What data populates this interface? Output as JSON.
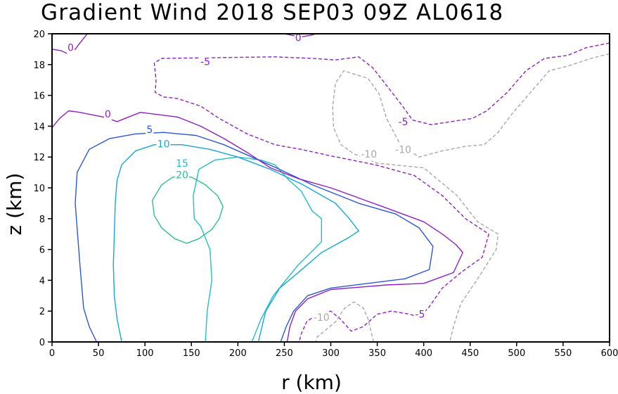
{
  "chart_data": {
    "type": "contour",
    "title": "Gradient Wind 2018 SEP03 09Z  AL0618",
    "xlabel": "r (km)",
    "ylabel": "z (km)",
    "xlim": [
      0,
      600
    ],
    "ylim": [
      0,
      20
    ],
    "xticks": [
      0,
      50,
      100,
      150,
      200,
      250,
      300,
      350,
      400,
      450,
      500,
      550,
      600
    ],
    "yticks": [
      0,
      2,
      4,
      6,
      8,
      10,
      12,
      14,
      16,
      18,
      20
    ],
    "xtick_labels": [
      "0",
      "50",
      "100",
      "150",
      "200",
      "250",
      "300",
      "350",
      "400",
      "450",
      "500",
      "550",
      "600"
    ],
    "ytick_labels": [
      "0",
      "2",
      "4",
      "6",
      "8",
      "10",
      "12",
      "14",
      "16",
      "18",
      "20"
    ],
    "levels": [
      {
        "value": 20,
        "label": "20",
        "color": "#2fbf95",
        "dashed": false,
        "lines": [
          [
            [
              108,
              9.2
            ],
            [
              118,
              10.2
            ],
            [
              130,
              10.7
            ],
            [
              150,
              10.7
            ],
            [
              165,
              10.2
            ],
            [
              178,
              9.5
            ],
            [
              184,
              8.8
            ],
            [
              180,
              8.0
            ],
            [
              172,
              7.3
            ],
            [
              158,
              6.7
            ],
            [
              145,
              6.4
            ],
            [
              132,
              6.7
            ],
            [
              118,
              7.4
            ],
            [
              110,
              8.2
            ],
            [
              108,
              9.2
            ]
          ]
        ],
        "labels": [
          {
            "x": 140,
            "y": 10.85
          }
        ]
      },
      {
        "value": 15,
        "label": "15",
        "color": "#20c0c8",
        "dashed": false,
        "lines": [
          [
            [
              165,
              0
            ],
            [
              167,
              2
            ],
            [
              172,
              4
            ],
            [
              170,
              6
            ],
            [
              160,
              7.5
            ],
            [
              153,
              8
            ],
            [
              152,
              9.5
            ],
            [
              158,
              11.2
            ],
            [
              175,
              11.8
            ],
            [
              200,
              12.0
            ],
            [
              225,
              11.8
            ],
            [
              240,
              11.5
            ],
            [
              255,
              10.5
            ],
            [
              268,
              9.8
            ],
            [
              280,
              8.5
            ],
            [
              290,
              8.0
            ],
            [
              290,
              6.5
            ],
            [
              265,
              5.0
            ],
            [
              238,
              3.0
            ],
            [
              225,
              1.5
            ],
            [
              215,
              0
            ]
          ]
        ],
        "labels": [
          {
            "x": 140,
            "y": 11.6
          }
        ]
      },
      {
        "value": 10,
        "label": "10",
        "color": "#14a8d8",
        "dashed": false,
        "lines": [
          [
            [
              75,
              0
            ],
            [
              70,
              1.5
            ],
            [
              67,
              3
            ],
            [
              66,
              5
            ],
            [
              67,
              7
            ],
            [
              68,
              9
            ],
            [
              70,
              10.5
            ],
            [
              75,
              11.5
            ],
            [
              90,
              12.4
            ],
            [
              110,
              12.8
            ],
            [
              140,
              12.8
            ],
            [
              170,
              12.5
            ],
            [
              200,
              12.0
            ],
            [
              235,
              11.2
            ],
            [
              270,
              10.2
            ],
            [
              305,
              9.0
            ],
            [
              320,
              8.0
            ],
            [
              330,
              7.2
            ],
            [
              320,
              6.8
            ],
            [
              290,
              5.8
            ],
            [
              265,
              4.5
            ],
            [
              245,
              3.5
            ],
            [
              230,
              2.0
            ],
            [
              222,
              0
            ]
          ]
        ],
        "labels": [
          {
            "x": 120,
            "y": 12.85
          }
        ]
      },
      {
        "value": 5,
        "label": "5",
        "color": "#2c57d8",
        "dashed": false,
        "lines": [
          [
            [
              48,
              0
            ],
            [
              40,
              1
            ],
            [
              34,
              2.2
            ],
            [
              30,
              5
            ],
            [
              25,
              9
            ],
            [
              27,
              11
            ],
            [
              40,
              12.5
            ],
            [
              62,
              13.2
            ],
            [
              90,
              13.5
            ],
            [
              120,
              13.6
            ],
            [
              155,
              13.4
            ],
            [
              185,
              12.8
            ],
            [
              215,
              12.0
            ],
            [
              245,
              11.2
            ],
            [
              280,
              10.2
            ],
            [
              330,
              9.0
            ],
            [
              370,
              8.3
            ],
            [
              395,
              7.4
            ],
            [
              410,
              6.2
            ],
            [
              406,
              4.7
            ],
            [
              380,
              4.1
            ],
            [
              300,
              3.5
            ],
            [
              275,
              3.0
            ],
            [
              260,
              2.0
            ],
            [
              252,
              1.0
            ],
            [
              246,
              0
            ]
          ]
        ],
        "labels": [
          {
            "x": 105,
            "y": 13.8
          }
        ]
      },
      {
        "value": 0,
        "label": "0",
        "color": "#9020c8",
        "dashed": false,
        "lines": [
          [
            [
              0,
              13.9
            ],
            [
              8,
              14.5
            ],
            [
              18,
              15.0
            ],
            [
              30,
              14.9
            ],
            [
              55,
              14.6
            ],
            [
              70,
              14.3
            ],
            [
              95,
              14.9
            ],
            [
              135,
              14.6
            ],
            [
              160,
              14.0
            ],
            [
              185,
              13.2
            ],
            [
              210,
              12.3
            ],
            [
              235,
              11.3
            ],
            [
              265,
              10.6
            ],
            [
              300,
              10.0
            ],
            [
              355,
              8.8
            ],
            [
              400,
              7.8
            ],
            [
              420,
              7.0
            ],
            [
              435,
              6.3
            ],
            [
              442,
              5.8
            ],
            [
              432,
              4.5
            ],
            [
              400,
              3.8
            ],
            [
              360,
              3.7
            ],
            [
              300,
              3.4
            ],
            [
              275,
              2.8
            ],
            [
              262,
              2.0
            ],
            [
              256,
              1.0
            ],
            [
              253,
              0
            ]
          ],
          [
            [
              0,
              19.0
            ],
            [
              10,
              18.9
            ],
            [
              17,
              18.7
            ],
            [
              25,
              19.0
            ],
            [
              30,
              19.4
            ],
            [
              34,
              19.7
            ],
            [
              38,
              20
            ]
          ],
          [
            [
              250,
              20
            ],
            [
              258,
              19.9
            ],
            [
              268,
              19.8
            ],
            [
              278,
              19.9
            ],
            [
              285,
              20
            ]
          ]
        ],
        "labels": [
          {
            "x": 60,
            "y": 14.8
          },
          {
            "x": 20,
            "y": 19.1
          },
          {
            "x": 265,
            "y": 19.75
          }
        ]
      },
      {
        "value": -5,
        "label": "-5",
        "color": "#9020c8",
        "dashed": true,
        "lines": [
          [
            [
              600,
              19.4
            ],
            [
              575,
              19.1
            ],
            [
              555,
              18.6
            ],
            [
              530,
              18.4
            ],
            [
              510,
              17.6
            ],
            [
              490,
              16.2
            ],
            [
              468,
              15.0
            ],
            [
              452,
              14.5
            ],
            [
              430,
              14.3
            ],
            [
              408,
              14.1
            ],
            [
              388,
              14.4
            ],
            [
              376,
              15.4
            ],
            [
              362,
              16.5
            ],
            [
              345,
              17.8
            ],
            [
              330,
              18.5
            ],
            [
              305,
              18.3
            ],
            [
              280,
              18.4
            ],
            [
              240,
              18.5
            ],
            [
              118,
              18.4
            ],
            [
              110,
              18.1
            ],
            [
              112,
              17.0
            ],
            [
              111,
              16.2
            ],
            [
              120,
              15.9
            ],
            [
              135,
              15.8
            ],
            [
              160,
              15.3
            ],
            [
              180,
              14.5
            ],
            [
              210,
              13.5
            ],
            [
              240,
              12.8
            ],
            [
              268,
              12.5
            ],
            [
              298,
              12.1
            ],
            [
              348,
              11.5
            ],
            [
              390,
              10.8
            ],
            [
              420,
              9.5
            ],
            [
              445,
              8.0
            ],
            [
              470,
              7.0
            ],
            [
              463,
              5.5
            ],
            [
              440,
              4.5
            ],
            [
              420,
              3.5
            ],
            [
              405,
              2.2
            ],
            [
              395,
              1.6
            ],
            [
              385,
              1.8
            ],
            [
              365,
              2.0
            ],
            [
              350,
              1.8
            ],
            [
              335,
              1.0
            ],
            [
              322,
              0.7
            ],
            [
              310,
              1.5
            ],
            [
              300,
              2.0
            ],
            [
              285,
              1.8
            ],
            [
              274,
              1.3
            ],
            [
              268,
              0.5
            ],
            [
              266,
              0
            ]
          ]
        ],
        "labels": [
          {
            "x": 165,
            "y": 18.2
          },
          {
            "x": 378,
            "y": 14.3
          },
          {
            "x": 396,
            "y": 1.8
          }
        ]
      },
      {
        "value": -10,
        "label": "-10",
        "color": "#a8a8a8",
        "dashed": true,
        "lines": [
          [
            [
              600,
              18.7
            ],
            [
              580,
              18.4
            ],
            [
              555,
              17.9
            ],
            [
              535,
              17.6
            ],
            [
              515,
              16.2
            ],
            [
              495,
              14.8
            ],
            [
              480,
              13.6
            ],
            [
              465,
              12.8
            ],
            [
              445,
              12.7
            ],
            [
              420,
              12.4
            ],
            [
              395,
              12.0
            ],
            [
              375,
              12.8
            ],
            [
              360,
              14.5
            ],
            [
              352,
              16.1
            ],
            [
              340,
              17.1
            ],
            [
              314,
              17.6
            ],
            [
              305,
              16.8
            ],
            [
              302,
              15.2
            ],
            [
              303,
              13.9
            ],
            [
              311,
              12.8
            ],
            [
              325,
              12.2
            ],
            [
              334,
              12.0
            ],
            [
              350,
              11.6
            ],
            [
              400,
              11.3
            ],
            [
              436,
              9.5
            ],
            [
              458,
              7.8
            ],
            [
              480,
              7.0
            ],
            [
              478,
              6.0
            ],
            [
              457,
              4.0
            ],
            [
              440,
              2.5
            ],
            [
              432,
              1.0
            ],
            [
              428,
              0
            ]
          ],
          [
            [
              346,
              0
            ],
            [
              340,
              1.5
            ],
            [
              335,
              2.2
            ],
            [
              325,
              2.6
            ],
            [
              315,
              2.2
            ],
            [
              305,
              1.3
            ],
            [
              295,
              0.8
            ],
            [
              285,
              0.3
            ],
            [
              284,
              0
            ]
          ]
        ],
        "labels": [
          {
            "x": 341,
            "y": 12.2
          },
          {
            "x": 378,
            "y": 12.5
          },
          {
            "x": 290,
            "y": 1.6
          }
        ]
      }
    ]
  }
}
